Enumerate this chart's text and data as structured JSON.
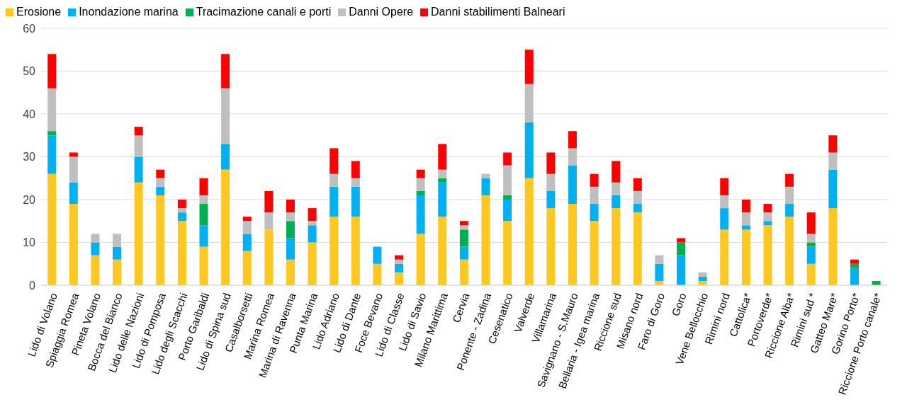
{
  "chart_data": {
    "type": "bar",
    "stacked": true,
    "categories": [
      "Lido di Volano",
      "Spiaggia Romea",
      "Pineta Volano",
      "Bocca del Bianco",
      "Lido delle Nazioni",
      "Lido di Pomposa",
      "Lido degli Scacchi",
      "Porto Garibaldi",
      "Lido di Spina sud",
      "Casalborsetti",
      "Marina Romea",
      "Marina di Ravenna",
      "Punta Marina",
      "Lido Adriano",
      "Lido di Dante",
      "Foce Bevano",
      "Lido di Classe",
      "Lido di Savio",
      "Milano Marittima",
      "Cervia",
      "Ponente - Zadina",
      "Cesenatico",
      "Valverde",
      "Villamarina",
      "Savignano - S.Mauro",
      "Bellaria - Igea marina",
      "Riccione sud",
      "Misano nord",
      "Faro di Goro",
      "Goro",
      "Vene Bellocchio",
      "Rimini nord",
      "Cattolica*",
      "Portoverde*",
      "Riccione Alba*",
      "Rimini sud *",
      "Gatteo Mare*",
      "Gorino Porto*",
      "Riccione Porto canale*"
    ],
    "series": [
      {
        "name": "Erosione",
        "color": "#ffc821",
        "values": [
          26,
          19,
          7,
          6,
          24,
          21,
          15,
          9,
          27,
          8,
          13,
          6,
          10,
          16,
          16,
          5,
          3,
          12,
          16,
          6,
          21,
          15,
          25,
          18,
          19,
          15,
          18,
          17,
          1,
          0,
          1,
          13,
          13,
          14,
          16,
          5,
          18,
          0,
          0
        ]
      },
      {
        "name": "Inondazione marina",
        "color": "#00b0f0",
        "values": [
          9,
          5,
          3,
          3,
          6,
          2,
          2,
          5,
          6,
          4,
          0,
          5,
          4,
          7,
          7,
          4,
          2,
          9,
          8,
          3,
          4,
          5,
          13,
          4,
          9,
          4,
          3,
          2,
          4,
          7,
          1,
          5,
          1,
          1,
          3,
          4,
          9,
          4,
          0
        ]
      },
      {
        "name": "Tracimazione canali e porti",
        "color": "#00b050",
        "values": [
          1,
          0,
          0,
          0,
          0,
          0,
          0,
          5,
          0,
          0,
          0,
          4,
          0,
          0,
          0,
          0,
          0,
          1,
          1,
          4,
          0,
          1,
          0,
          0,
          0,
          0,
          0,
          0,
          0,
          3,
          0,
          0,
          0,
          0,
          0,
          1,
          0,
          1,
          1
        ]
      },
      {
        "name": "Danni Opere",
        "color": "#bfbfbf",
        "values": [
          10,
          6,
          2,
          3,
          5,
          2,
          1,
          2,
          13,
          3,
          4,
          2,
          1,
          3,
          2,
          0,
          1,
          3,
          2,
          1,
          1,
          7,
          9,
          4,
          4,
          4,
          3,
          3,
          2,
          0,
          1,
          3,
          3,
          2,
          4,
          2,
          4,
          0,
          0
        ]
      },
      {
        "name": "Danni stabilimenti Balneari",
        "color": "#ff0000",
        "values": [
          8,
          1,
          0,
          0,
          2,
          2,
          2,
          4,
          8,
          1,
          5,
          3,
          3,
          6,
          4,
          0,
          1,
          2,
          6,
          1,
          0,
          3,
          8,
          5,
          4,
          3,
          5,
          3,
          0,
          1,
          0,
          4,
          3,
          2,
          3,
          5,
          4,
          1,
          0
        ]
      }
    ],
    "ylim": [
      0,
      60
    ],
    "yticks": [
      0,
      10,
      20,
      30,
      40,
      50,
      60
    ],
    "grid": "y",
    "legend": "top left"
  }
}
